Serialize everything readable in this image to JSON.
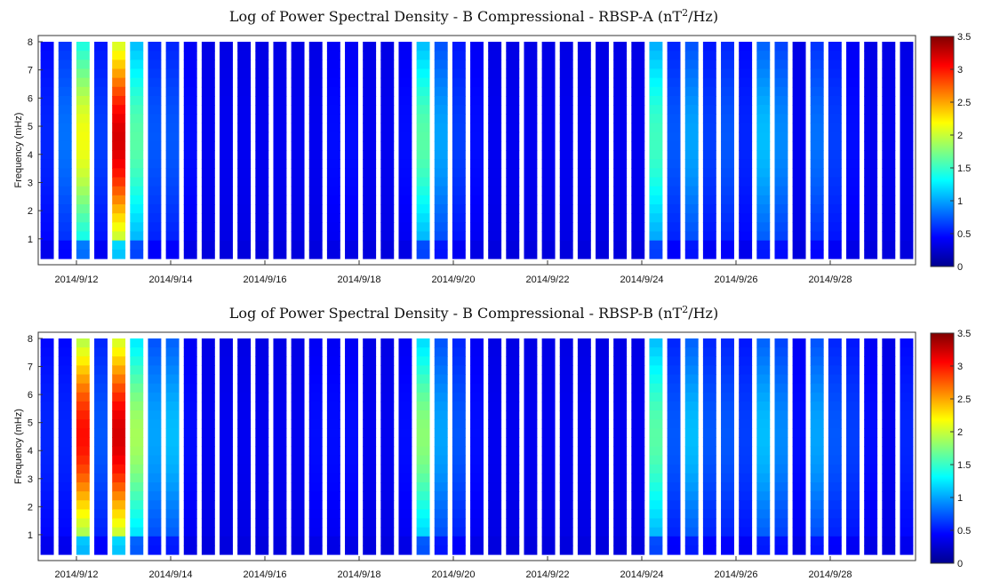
{
  "chart_data": [
    {
      "type": "heatmap",
      "title": "Log of Power Spectral Density - B Compressional - RBSP-A",
      "title_units": "(nT",
      "title_sup": "2",
      "title_units_end": "/Hz)",
      "ylabel": "Frequency (mHz)",
      "xlabel": "",
      "x_tick_labels": [
        "2014/9/12",
        "2014/9/14",
        "2014/9/16",
        "2014/9/18",
        "2014/9/20",
        "2014/9/22",
        "2014/9/24",
        "2014/9/26",
        "2014/9/28"
      ],
      "y_ticks": [
        "1",
        "2",
        "3",
        "4",
        "5",
        "6",
        "7",
        "8"
      ],
      "ylim": [
        0.3,
        8
      ],
      "colorbar": {
        "colormap": "jet",
        "range": [
          0,
          3.5
        ],
        "ticks": [
          "0",
          "0.5",
          "1",
          "1.5",
          "2",
          "2.5",
          "3",
          "3.5"
        ]
      },
      "passes": 49,
      "pass_peak_values": [
        0.4,
        0.7,
        2.2,
        0.5,
        3.4,
        1.6,
        0.6,
        0.6,
        0.3,
        0.2,
        0.2,
        0.2,
        0.2,
        0.2,
        0.2,
        0.2,
        0.3,
        0.3,
        0.2,
        0.2,
        0.3,
        1.6,
        0.9,
        0.5,
        0.3,
        0.2,
        0.2,
        0.2,
        0.2,
        0.2,
        0.2,
        0.2,
        0.2,
        0.2,
        1.5,
        0.6,
        0.9,
        0.5,
        0.6,
        0.4,
        1.0,
        0.8,
        0.2,
        0.7,
        0.5,
        0.3,
        0.2,
        0.2,
        0.2
      ]
    },
    {
      "type": "heatmap",
      "title": "Log of Power Spectral Density - B Compressional - RBSP-B",
      "title_units": "(nT",
      "title_sup": "2",
      "title_units_end": "/Hz)",
      "ylabel": "Frequency (mHz)",
      "xlabel": "",
      "x_tick_labels": [
        "2014/9/12",
        "2014/9/14",
        "2014/9/16",
        "2014/9/18",
        "2014/9/20",
        "2014/9/22",
        "2014/9/24",
        "2014/9/26",
        "2014/9/28"
      ],
      "y_ticks": [
        "1",
        "2",
        "3",
        "4",
        "5",
        "6",
        "7",
        "8"
      ],
      "ylim": [
        0.3,
        8
      ],
      "colorbar": {
        "colormap": "jet",
        "range": [
          0,
          3.5
        ],
        "ticks": [
          "0",
          "0.5",
          "1",
          "1.5",
          "2",
          "2.5",
          "3",
          "3.5"
        ]
      },
      "passes": 49,
      "pass_peak_values": [
        0.4,
        0.4,
        3.2,
        0.6,
        3.4,
        1.9,
        0.9,
        1.0,
        0.3,
        0.2,
        0.2,
        0.2,
        0.2,
        0.2,
        0.2,
        0.3,
        0.3,
        0.3,
        0.2,
        0.2,
        0.3,
        1.8,
        0.9,
        0.6,
        0.3,
        0.2,
        0.2,
        0.2,
        0.2,
        0.2,
        0.2,
        0.2,
        0.2,
        0.2,
        1.6,
        0.6,
        1.0,
        0.6,
        0.6,
        0.5,
        1.0,
        0.8,
        0.3,
        0.9,
        0.6,
        0.5,
        0.3,
        0.2,
        0.4
      ]
    }
  ]
}
